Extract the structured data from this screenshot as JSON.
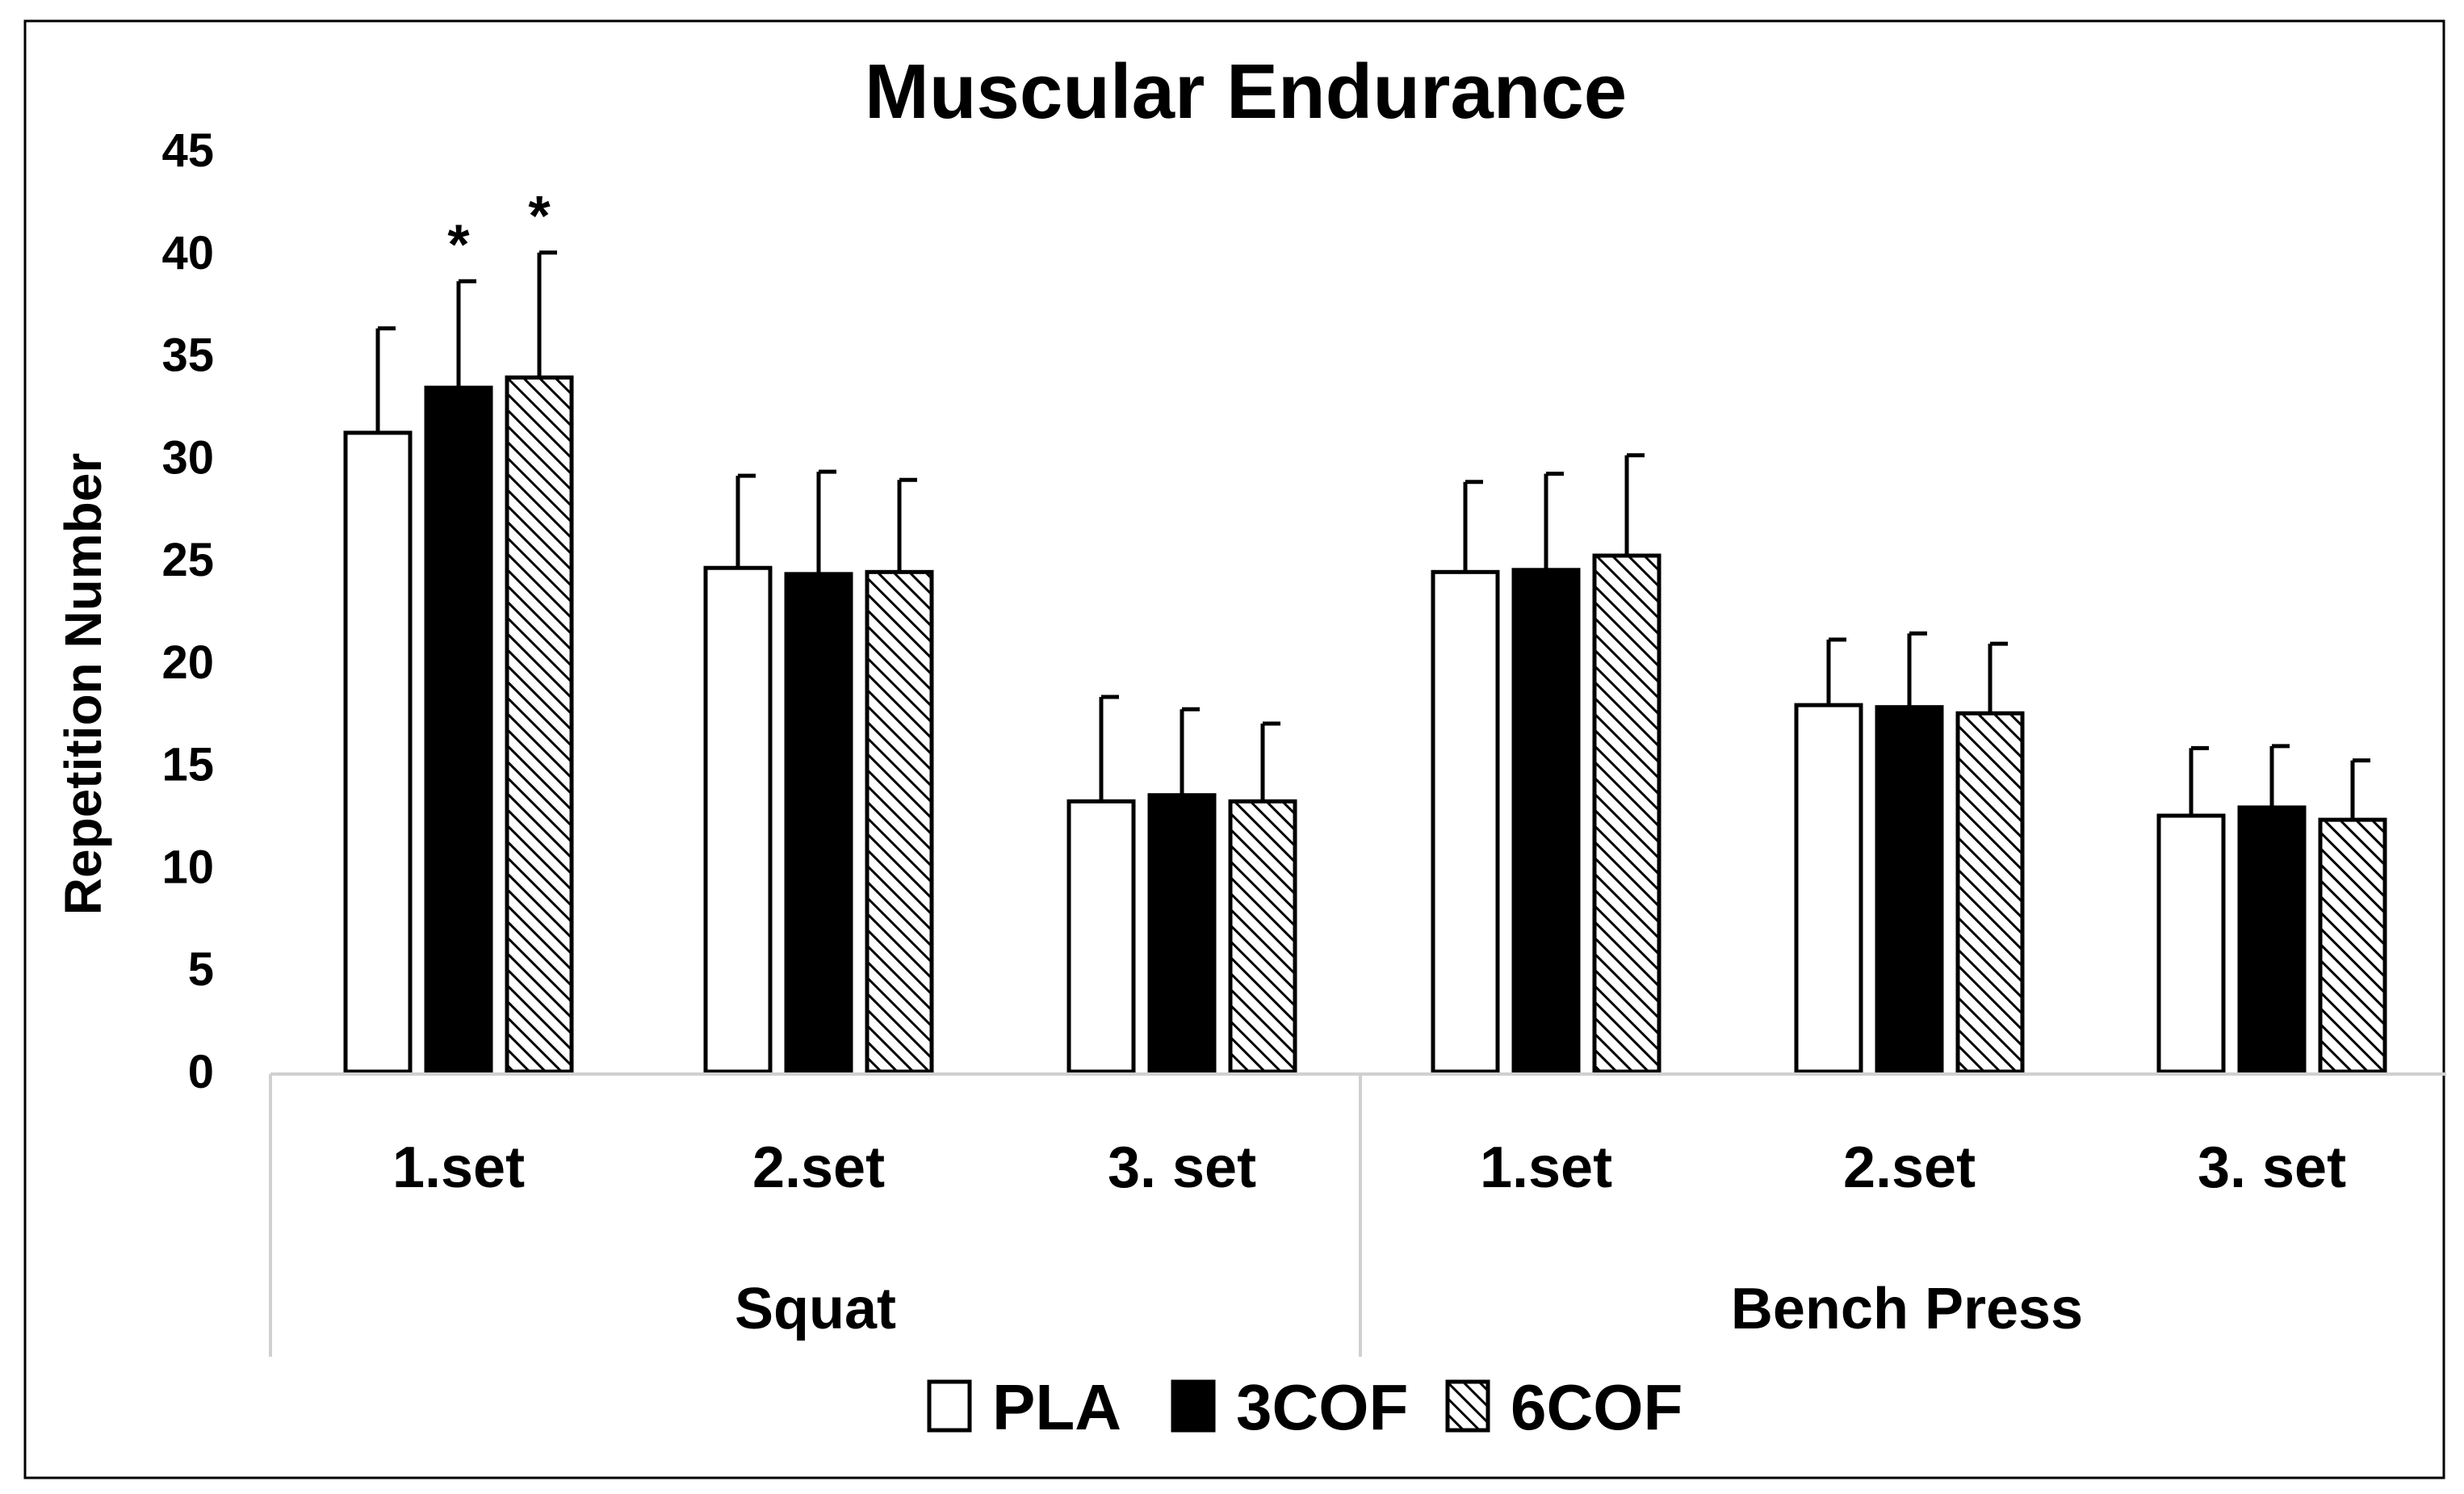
{
  "chart_data": {
    "type": "bar",
    "title": "Muscular Endurance",
    "ylabel": "Repetition Number",
    "xlabel": "",
    "ylim": [
      0,
      45
    ],
    "yticks": [
      0,
      5,
      10,
      15,
      20,
      25,
      30,
      35,
      40,
      45
    ],
    "grid": false,
    "legend_position": "bottom",
    "groups": [
      "Squat",
      "Bench Press"
    ],
    "categories": [
      "1.set",
      "2.set",
      "3. set",
      "1.set",
      "2.set",
      "3. set"
    ],
    "category_group": [
      "Squat",
      "Squat",
      "Squat",
      "Bench Press",
      "Bench Press",
      "Bench Press"
    ],
    "series": [
      {
        "name": "PLA",
        "fill": "white",
        "values": [
          31.2,
          24.6,
          13.2,
          24.4,
          17.9,
          12.5
        ],
        "errors": [
          5.1,
          4.5,
          5.1,
          4.4,
          3.2,
          3.3
        ]
      },
      {
        "name": "3COF",
        "fill": "black",
        "values": [
          33.4,
          24.3,
          13.5,
          24.5,
          17.8,
          12.9
        ],
        "errors": [
          5.2,
          5.0,
          4.2,
          4.7,
          3.6,
          3.0
        ]
      },
      {
        "name": "6COF",
        "fill": "hatch",
        "values": [
          33.9,
          24.4,
          13.2,
          25.2,
          17.5,
          12.3
        ],
        "errors": [
          6.1,
          4.5,
          3.8,
          4.9,
          3.4,
          2.9
        ]
      }
    ],
    "annotations": [
      {
        "category_index": 0,
        "series": "3COF",
        "text": "*"
      },
      {
        "category_index": 0,
        "series": "6COF",
        "text": "*"
      }
    ],
    "colors": {
      "outline": "#000000",
      "axis": "#d0d0d0",
      "border": "#000000"
    }
  }
}
